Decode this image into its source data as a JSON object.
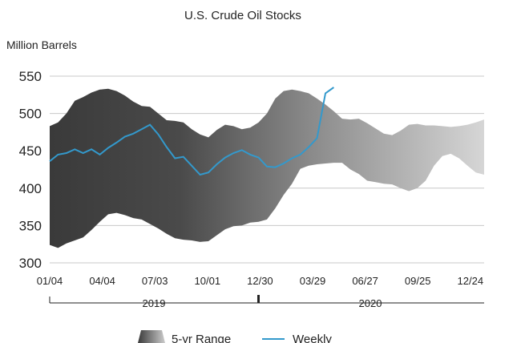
{
  "chart_data": {
    "type": "area",
    "title": "U.S. Crude Oil Stocks",
    "ylabel": "Million Barrels",
    "ylim": [
      300,
      550
    ],
    "yticks": [
      300,
      350,
      400,
      450,
      500,
      550
    ],
    "x_ticks": [
      "01/04",
      "04/04",
      "07/03",
      "10/01",
      "12/30",
      "03/29",
      "06/27",
      "09/25",
      "12/24"
    ],
    "years": [
      "2019",
      "2020"
    ],
    "grid": true,
    "legend_position": "bottom",
    "range_series": {
      "name": "5-yr Range",
      "color": "#555555",
      "weeks": [
        0,
        2,
        4,
        6,
        8,
        10,
        12,
        14,
        16,
        18,
        20,
        22,
        24,
        26,
        28,
        30,
        32,
        34,
        36,
        38,
        40,
        42,
        44,
        46,
        48,
        50,
        52,
        54,
        56,
        58,
        60,
        62,
        64,
        66,
        68,
        70,
        72,
        74,
        76,
        78,
        80,
        82,
        84,
        86,
        88,
        90,
        92,
        94,
        96,
        98,
        100,
        102,
        104
      ],
      "upper": [
        483,
        488,
        500,
        517,
        522,
        528,
        532,
        533,
        530,
        524,
        516,
        510,
        509,
        500,
        491,
        490,
        488,
        479,
        472,
        468,
        478,
        485,
        483,
        479,
        481,
        488,
        500,
        520,
        530,
        532,
        530,
        527,
        520,
        512,
        503,
        493,
        492,
        493,
        487,
        480,
        473,
        471,
        477,
        485,
        486,
        484,
        484,
        483,
        482,
        483,
        485,
        488,
        492
      ],
      "lower": [
        324,
        320,
        326,
        330,
        334,
        344,
        355,
        365,
        367,
        364,
        360,
        358,
        352,
        346,
        339,
        333,
        331,
        330,
        328,
        329,
        337,
        345,
        349,
        350,
        354,
        355,
        358,
        373,
        391,
        406,
        426,
        430,
        432,
        433,
        434,
        434,
        425,
        419,
        410,
        408,
        406,
        405,
        400,
        396,
        400,
        410,
        430,
        443,
        446,
        440,
        430,
        421,
        418
      ]
    },
    "series": [
      {
        "name": "Weekly",
        "color": "#3399cc",
        "weeks": [
          0,
          2,
          4,
          6,
          8,
          10,
          12,
          14,
          16,
          18,
          20,
          22,
          24,
          26,
          28,
          30,
          32,
          34,
          36,
          38,
          40,
          42,
          44,
          46,
          48,
          50,
          52,
          54,
          56,
          58,
          60,
          62,
          64,
          66,
          68
        ],
        "values": [
          436,
          445,
          447,
          452,
          447,
          452,
          445,
          454,
          461,
          469,
          473,
          479,
          485,
          472,
          455,
          440,
          442,
          430,
          418,
          421,
          432,
          441,
          447,
          451,
          445,
          441,
          429,
          428,
          433,
          440,
          445,
          455,
          467,
          527,
          535
        ]
      }
    ]
  }
}
